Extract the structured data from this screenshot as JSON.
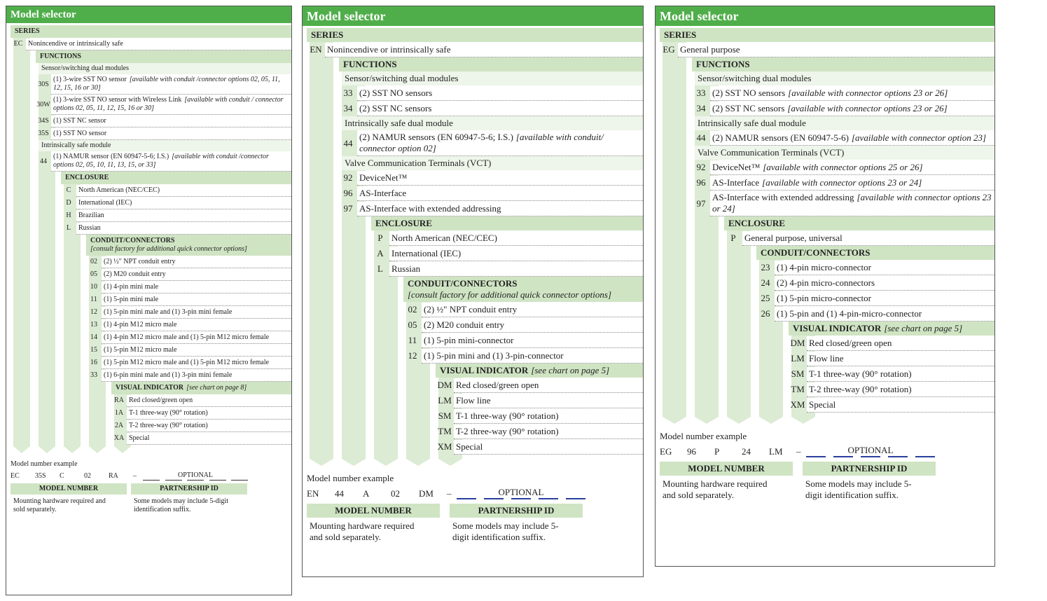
{
  "panels": [
    {
      "title": "Model selector",
      "section": {
        "heading": "SERIES",
        "groups": [
          {
            "rows": [
              {
                "code": "EC",
                "text": "Nonincendive or intrinsically safe"
              }
            ]
          }
        ],
        "child": {
          "heading": "FUNCTIONS",
          "groups": [
            {
              "subheading": "Sensor/switching dual modules",
              "rows": [
                {
                  "code": "30S",
                  "text": "(1) 3-wire SST NO sensor",
                  "note": "[available with conduit /connector options 02, 05, 11, 12, 15, 16 or 30]"
                },
                {
                  "code": "30W",
                  "text": "(1) 3-wire SST NO sensor with Wireless Link",
                  "note": "[available with conduit / connector options 02, 05, 11, 12, 15, 16 or 30]"
                },
                {
                  "code": "34S",
                  "text": "(1) SST NC sensor"
                },
                {
                  "code": "35S",
                  "text": "(1) SST NO sensor"
                }
              ]
            },
            {
              "subheading": "Intrinsically safe module",
              "rows": [
                {
                  "code": "44",
                  "text": "(1) NAMUR sensor (EN 60947-5-6; I.S.)",
                  "note": "[available with conduit /connector options 02, 05, 10, 11, 13, 15, or 33]"
                }
              ]
            }
          ],
          "child": {
            "heading": "ENCLOSURE",
            "groups": [
              {
                "rows": [
                  {
                    "code": "C",
                    "text": "North American (NEC/CEC)"
                  },
                  {
                    "code": "D",
                    "text": "International (IEC)"
                  },
                  {
                    "code": "H",
                    "text": "Brazilian"
                  },
                  {
                    "code": "L",
                    "text": "Russian"
                  }
                ]
              }
            ],
            "child": {
              "heading": "CONDUIT/CONNECTORS",
              "heading_note": "[consult factory for additional quick connector options]",
              "groups": [
                {
                  "rows": [
                    {
                      "code": "02",
                      "text": "(2) ½\" NPT conduit entry"
                    },
                    {
                      "code": "05",
                      "text": "(2) M20 conduit entry"
                    },
                    {
                      "code": "10",
                      "text": "(1) 4-pin mini male"
                    },
                    {
                      "code": "11",
                      "text": "(1) 5-pin mini male"
                    },
                    {
                      "code": "12",
                      "text": "(1) 5-pin mini male and (1) 3-pin mini female"
                    },
                    {
                      "code": "13",
                      "text": "(1) 4-pin M12 micro male"
                    },
                    {
                      "code": "14",
                      "text": "(1) 4-pin M12 micro male and (1) 5-pin M12 micro female"
                    },
                    {
                      "code": "15",
                      "text": "(1) 5-pin M12 micro male"
                    },
                    {
                      "code": "16",
                      "text": "(1) 5-pin M12 micro male and (1) 5-pin M12 micro female"
                    },
                    {
                      "code": "33",
                      "text": "(1) 6-pin mini male and (1) 3-pin mini female"
                    }
                  ]
                }
              ],
              "child": {
                "heading": "VISUAL INDICATOR",
                "heading_note": "[see chart on page 8]",
                "groups": [
                  {
                    "rows": [
                      {
                        "code": "RA",
                        "text": "Red closed/green open"
                      },
                      {
                        "code": "1A",
                        "text": "T-1 three-way (90° rotation)"
                      },
                      {
                        "code": "2A",
                        "text": "T-2 three-way (90° rotation)"
                      },
                      {
                        "code": "XA",
                        "text": "Special"
                      }
                    ]
                  }
                ]
              }
            }
          }
        }
      },
      "example": {
        "label": "Model number example",
        "codes": [
          "EC",
          "35S",
          "C",
          "02",
          "RA"
        ],
        "dash": "–",
        "optional": "OPTIONAL",
        "model_number": {
          "title": "MODEL NUMBER",
          "text": "Mounting hardware required and sold separately."
        },
        "partnership_id": {
          "title": "PARTNERSHIP ID",
          "text": "Some models may include 5-digit identification suffix."
        }
      }
    },
    {
      "title": "Model selector",
      "section": {
        "heading": "SERIES",
        "groups": [
          {
            "rows": [
              {
                "code": "EN",
                "text": "Nonincendive or intrinsically safe"
              }
            ]
          }
        ],
        "child": {
          "heading": "FUNCTIONS",
          "groups": [
            {
              "subheading": "Sensor/switching dual modules",
              "rows": [
                {
                  "code": "33",
                  "text": "(2) SST NO sensors"
                },
                {
                  "code": "34",
                  "text": "(2) SST NC sensors"
                }
              ]
            },
            {
              "subheading": "Intrinsically safe dual module",
              "rows": [
                {
                  "code": "44",
                  "text": "(2) NAMUR sensors (EN 60947-5-6; I.S.)",
                  "note": "[available with conduit/ connector option 02]"
                }
              ]
            },
            {
              "subheading": "Valve Communication Terminals (VCT)",
              "rows": [
                {
                  "code": "92",
                  "text": "DeviceNet™"
                },
                {
                  "code": "96",
                  "text": "AS-Interface"
                },
                {
                  "code": "97",
                  "text": "AS-Interface with extended addressing"
                }
              ]
            }
          ],
          "child": {
            "heading": "ENCLOSURE",
            "groups": [
              {
                "rows": [
                  {
                    "code": "P",
                    "text": "North American (NEC/CEC)"
                  },
                  {
                    "code": "A",
                    "text": "International (IEC)"
                  },
                  {
                    "code": "L",
                    "text": "Russian"
                  }
                ]
              }
            ],
            "child": {
              "heading": "CONDUIT/CONNECTORS",
              "heading_note": "[consult factory for additional quick connector options]",
              "groups": [
                {
                  "rows": [
                    {
                      "code": "02",
                      "text": "(2) ½\" NPT conduit entry"
                    },
                    {
                      "code": "05",
                      "text": "(2) M20 conduit entry"
                    },
                    {
                      "code": "11",
                      "text": "(1) 5-pin mini-connector"
                    },
                    {
                      "code": "12",
                      "text": "(1) 5-pin mini and (1) 3-pin-connector"
                    }
                  ]
                }
              ],
              "child": {
                "heading": "VISUAL INDICATOR",
                "heading_note": "[see chart on page 5]",
                "groups": [
                  {
                    "rows": [
                      {
                        "code": "DM",
                        "text": "Red closed/green open"
                      },
                      {
                        "code": "LM",
                        "text": "Flow line"
                      },
                      {
                        "code": "SM",
                        "text": "T-1 three-way (90° rotation)"
                      },
                      {
                        "code": "TM",
                        "text": "T-2 three-way (90° rotation)"
                      },
                      {
                        "code": "XM",
                        "text": "Special"
                      }
                    ]
                  }
                ]
              }
            }
          }
        }
      },
      "example": {
        "label": "Model number example",
        "codes": [
          "EN",
          "44",
          "A",
          "02",
          "DM"
        ],
        "dash": "–",
        "optional": "OPTIONAL",
        "model_number": {
          "title": "MODEL NUMBER",
          "text": "Mounting hardware required and sold separately."
        },
        "partnership_id": {
          "title": "PARTNERSHIP ID",
          "text": "Some models may include 5-digit identification suffix."
        }
      }
    },
    {
      "title": "Model selector",
      "section": {
        "heading": "SERIES",
        "groups": [
          {
            "rows": [
              {
                "code": "EG",
                "text": "General purpose"
              }
            ]
          }
        ],
        "child": {
          "heading": "FUNCTIONS",
          "groups": [
            {
              "subheading": "Sensor/switching dual modules",
              "rows": [
                {
                  "code": "33",
                  "text": "(2) SST NO sensors",
                  "note": "[available with connector options 23 or 26]"
                },
                {
                  "code": "34",
                  "text": "(2) SST NC sensors",
                  "note": "[available with connector options 23 or 26]"
                }
              ]
            },
            {
              "subheading": "Intrinsically safe dual module",
              "rows": [
                {
                  "code": "44",
                  "text": "(2) NAMUR sensors (EN 60947-5-6)",
                  "note": "[available with connector option 23]"
                }
              ]
            },
            {
              "subheading": "Valve Communication Terminals (VCT)",
              "rows": [
                {
                  "code": "92",
                  "text": "DeviceNet™",
                  "note": "[available with connector options 25 or 26]"
                },
                {
                  "code": "96",
                  "text": "AS-Interface",
                  "note": "[available with connector options 23 or 24]"
                },
                {
                  "code": "97",
                  "text": "AS-Interface with extended addressing",
                  "note": "[available with connector options 23 or 24]"
                }
              ]
            }
          ],
          "child": {
            "heading": "ENCLOSURE",
            "groups": [
              {
                "rows": [
                  {
                    "code": "P",
                    "text": "General purpose, universal"
                  }
                ]
              }
            ],
            "child": {
              "heading": "CONDUIT/CONNECTORS",
              "groups": [
                {
                  "rows": [
                    {
                      "code": "23",
                      "text": "(1) 4-pin micro-connector"
                    },
                    {
                      "code": "24",
                      "text": "(2) 4-pin micro-connectors"
                    },
                    {
                      "code": "25",
                      "text": "(1) 5-pin micro-connector"
                    },
                    {
                      "code": "26",
                      "text": "(1) 5-pin and (1) 4-pin-micro-connector"
                    }
                  ]
                }
              ],
              "child": {
                "heading": "VISUAL INDICATOR",
                "heading_note": "[see chart on page 5]",
                "groups": [
                  {
                    "rows": [
                      {
                        "code": "DM",
                        "text": "Red closed/green open"
                      },
                      {
                        "code": "LM",
                        "text": "Flow line"
                      },
                      {
                        "code": "SM",
                        "text": "T-1 three-way (90° rotation)"
                      },
                      {
                        "code": "TM",
                        "text": "T-2 three-way (90° rotation)"
                      },
                      {
                        "code": "XM",
                        "text": "Special"
                      }
                    ]
                  }
                ]
              }
            }
          }
        }
      },
      "example": {
        "label": "Model number example",
        "codes": [
          "EG",
          "96",
          "P",
          "24",
          "LM"
        ],
        "dash": "–",
        "optional": "OPTIONAL",
        "model_number": {
          "title": "MODEL NUMBER",
          "text": "Mounting hardware required and sold separately."
        },
        "partnership_id": {
          "title": "PARTNERSHIP ID",
          "text": "Some models may include 5-digit identification suffix."
        }
      }
    }
  ]
}
